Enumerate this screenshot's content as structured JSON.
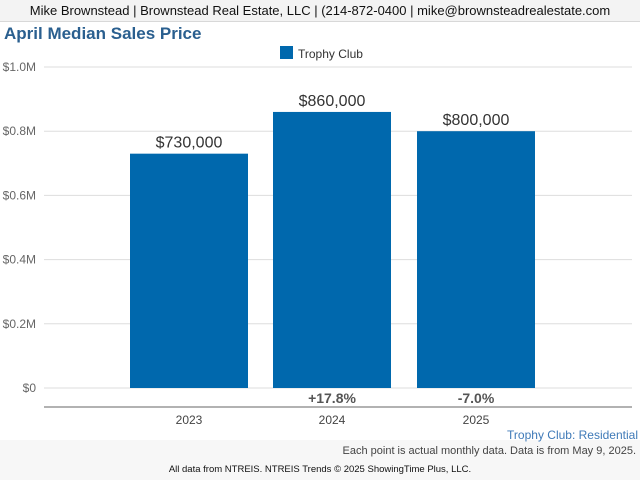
{
  "header": {
    "text": "Mike Brownstead | Brownstead Real Estate, LLC | (214-872-0400 | mike@brownsteadrealestate.com"
  },
  "chart_title": "April Median Sales Price",
  "footer": {
    "subtitle": "Trophy Club: Residential",
    "note": "Each point is actual monthly data. Data is from May 9, 2025.",
    "credit": "All data from NTREIS. NTREIS Trends © 2025 ShowingTime Plus, LLC."
  },
  "colors": {
    "bar": "#0068ad",
    "title": "#2a5f8f",
    "gridline": "#dddddd",
    "axis": "#666666"
  },
  "chart_data": {
    "type": "bar",
    "title": "April Median Sales Price",
    "xlabel": "",
    "ylabel": "",
    "categories": [
      "2023",
      "2024",
      "2025"
    ],
    "series": [
      {
        "name": "Trophy Club",
        "values": [
          730000,
          860000,
          800000
        ],
        "value_labels": [
          "$730,000",
          "$860,000",
          "$800,000"
        ],
        "change_labels": [
          "",
          "+17.8%",
          "-7.0%"
        ]
      }
    ],
    "ylim": [
      0,
      1000000
    ],
    "yticks": [
      0,
      200000,
      400000,
      600000,
      800000,
      1000000
    ],
    "ytick_labels": [
      "$0",
      "$0.2M",
      "$0.4M",
      "$0.6M",
      "$0.8M",
      "$1.0M"
    ],
    "grid": true,
    "legend": "top-center"
  }
}
